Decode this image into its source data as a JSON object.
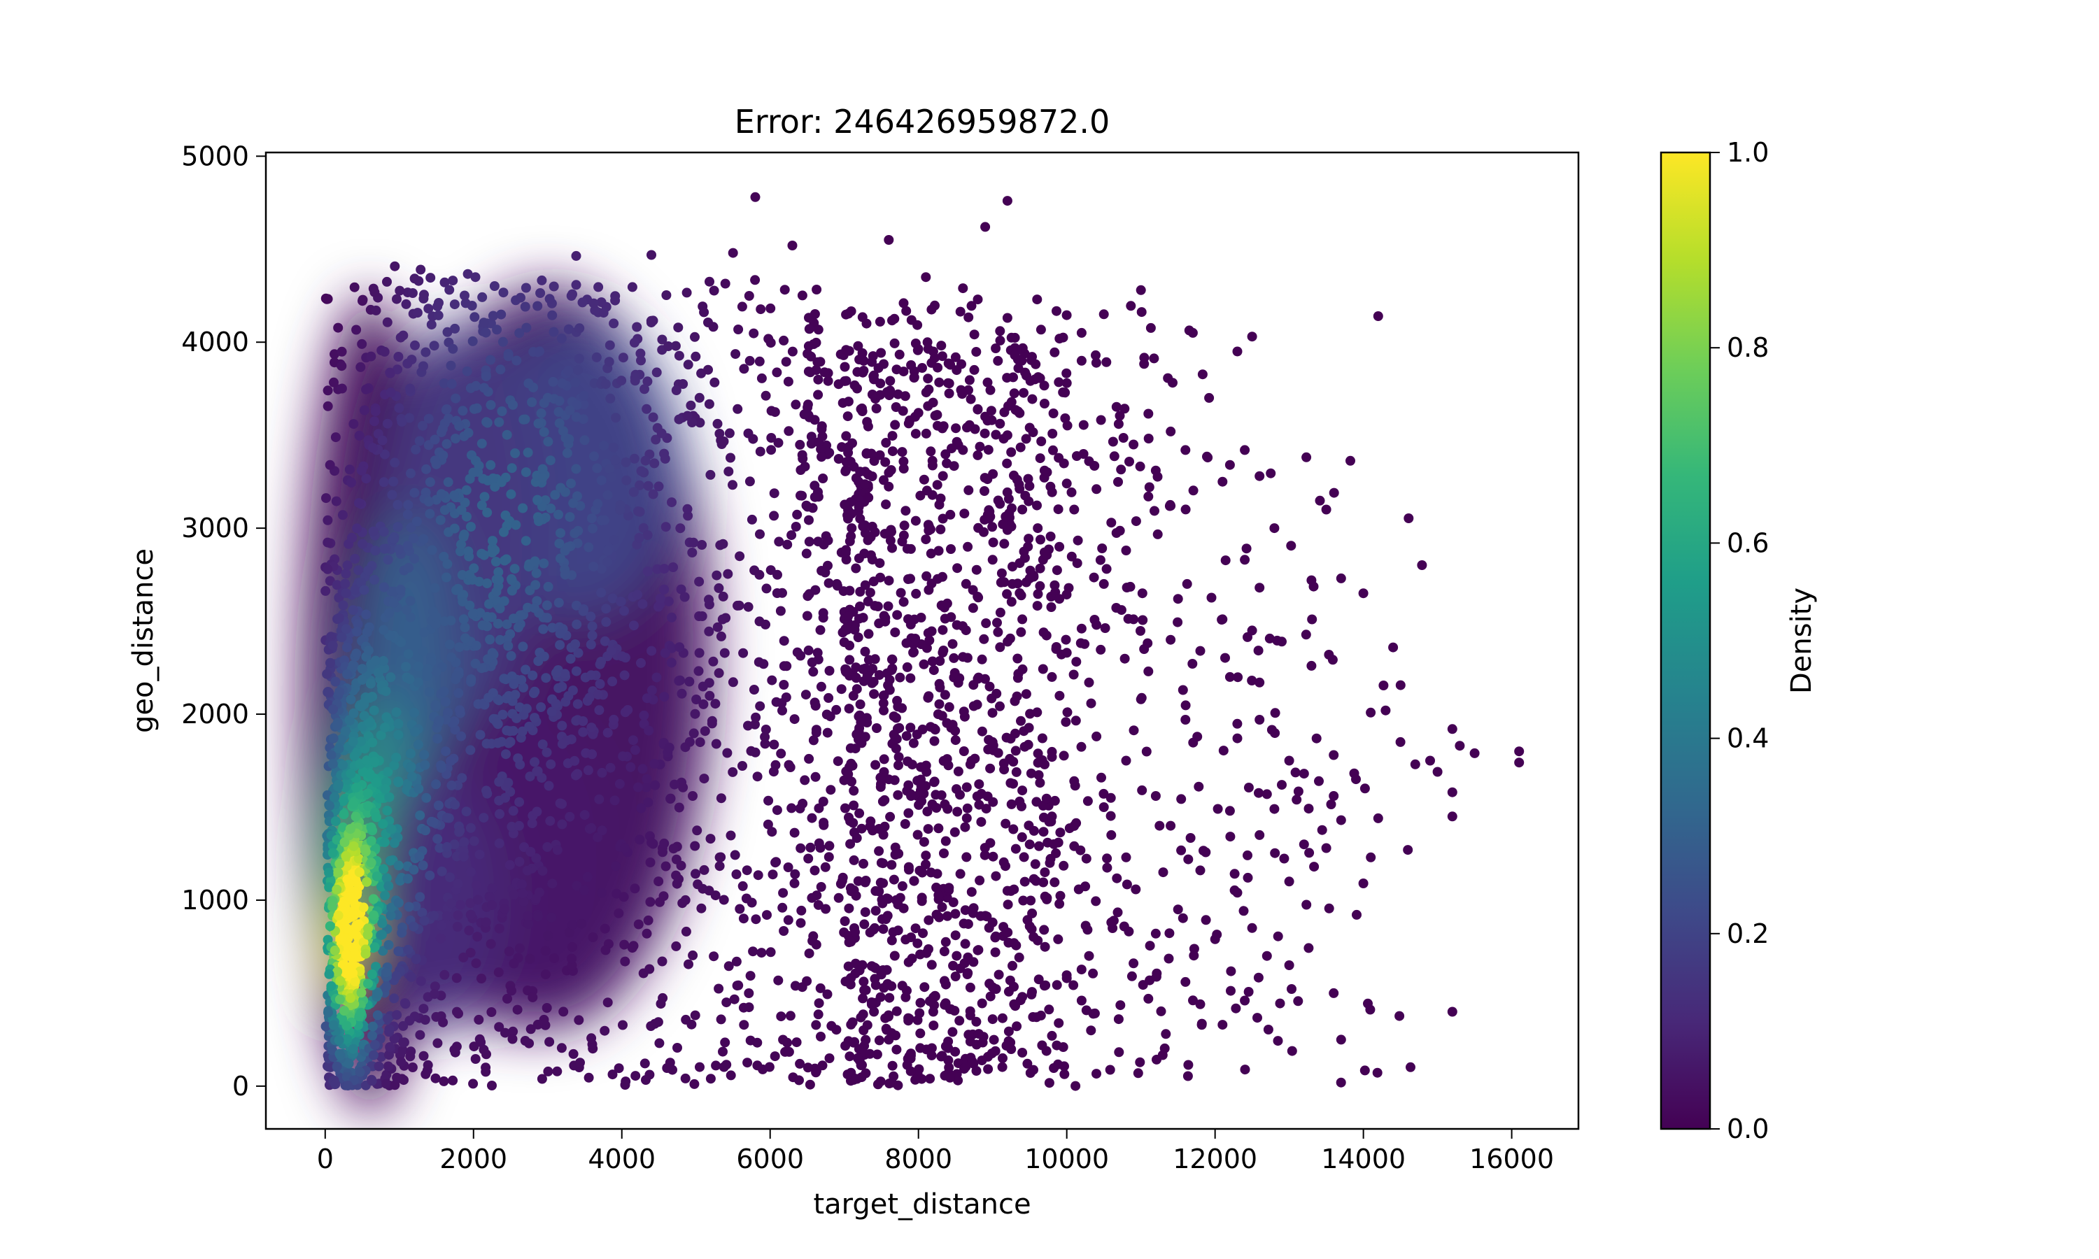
{
  "chart_data": {
    "type": "scatter",
    "title": "Error: 246426959872.0",
    "xlabel": "target_distance",
    "ylabel": "geo_distance",
    "xlim": [
      -800,
      16900
    ],
    "ylim": [
      -230,
      5020
    ],
    "x_ticks": [
      0,
      2000,
      4000,
      6000,
      8000,
      10000,
      12000,
      14000,
      16000
    ],
    "y_ticks": [
      0,
      1000,
      2000,
      3000,
      4000,
      5000
    ],
    "grid": false,
    "legend": "none",
    "colormap": "viridis",
    "colorbar": {
      "label": "Density",
      "ticks": [
        0.0,
        0.2,
        0.4,
        0.6,
        0.8,
        1.0
      ],
      "tick_labels": [
        "0.0",
        "0.2",
        "0.4",
        "0.6",
        "0.8",
        "1.0"
      ],
      "range": [
        0.0,
        1.0
      ]
    },
    "colors": [
      "#440154",
      "#482878",
      "#3e4989",
      "#31688e",
      "#26828e",
      "#1f9e89",
      "#35b779",
      "#6ece58",
      "#b5de2b",
      "#fde725"
    ],
    "outlier_points": [
      [
        5800,
        4780
      ],
      [
        9200,
        4760
      ],
      [
        8900,
        4620
      ],
      [
        7600,
        4550
      ],
      [
        6300,
        4520
      ],
      [
        5500,
        4480
      ],
      [
        14200,
        4140
      ],
      [
        12500,
        4030
      ],
      [
        11000,
        4280
      ],
      [
        10500,
        4150
      ],
      [
        12300,
        3950
      ],
      [
        11700,
        4050
      ],
      [
        13500,
        3100
      ],
      [
        12800,
        3000
      ],
      [
        13300,
        2720
      ],
      [
        14000,
        2650
      ],
      [
        13700,
        2730
      ],
      [
        12600,
        2680
      ],
      [
        14300,
        2020
      ],
      [
        14900,
        1750
      ],
      [
        15200,
        1920
      ],
      [
        15300,
        1830
      ],
      [
        16100,
        1800
      ],
      [
        16100,
        1740
      ],
      [
        15200,
        1580
      ],
      [
        15200,
        1450
      ],
      [
        14700,
        1730
      ],
      [
        14500,
        1850
      ],
      [
        13000,
        1750
      ],
      [
        13200,
        1680
      ],
      [
        13600,
        1780
      ],
      [
        13900,
        1650
      ],
      [
        13700,
        1430
      ],
      [
        13500,
        1280
      ],
      [
        13200,
        1300
      ],
      [
        13000,
        1100
      ],
      [
        12600,
        1350
      ],
      [
        12300,
        1040
      ],
      [
        12500,
        850
      ],
      [
        12700,
        700
      ],
      [
        13000,
        650
      ],
      [
        12000,
        790
      ],
      [
        11500,
        950
      ],
      [
        11200,
        820
      ],
      [
        10900,
        660
      ],
      [
        10600,
        880
      ],
      [
        10300,
        700
      ],
      [
        10000,
        580
      ],
      [
        9700,
        540
      ],
      [
        9400,
        480
      ],
      [
        9000,
        360
      ],
      [
        8700,
        380
      ],
      [
        9400,
        180
      ],
      [
        10200,
        460
      ],
      [
        10700,
        360
      ],
      [
        11100,
        470
      ],
      [
        11600,
        560
      ],
      [
        11800,
        440
      ],
      [
        12100,
        330
      ],
      [
        12400,
        460
      ],
      [
        13700,
        250
      ],
      [
        13600,
        500
      ],
      [
        15200,
        400
      ],
      [
        14100,
        1230
      ],
      [
        14000,
        1090
      ],
      [
        12800,
        1490
      ],
      [
        12200,
        1480
      ],
      [
        11800,
        1160
      ],
      [
        11300,
        1150
      ],
      [
        10800,
        1230
      ],
      [
        10500,
        1500
      ],
      [
        10100,
        1290
      ],
      [
        9800,
        1450
      ],
      [
        9500,
        1300
      ],
      [
        12500,
        2450
      ],
      [
        12100,
        2510
      ],
      [
        11800,
        2340
      ],
      [
        12200,
        2200
      ],
      [
        12600,
        2170
      ],
      [
        11400,
        2400
      ],
      [
        11100,
        2230
      ],
      [
        11000,
        2080
      ],
      [
        11600,
        1970
      ],
      [
        12300,
        1870
      ],
      [
        12600,
        1970
      ],
      [
        10300,
        2170
      ],
      [
        10000,
        2330
      ],
      [
        9800,
        2200
      ],
      [
        10400,
        2480
      ],
      [
        11500,
        2620
      ],
      [
        10800,
        2880
      ],
      [
        10600,
        3030
      ],
      [
        11100,
        3170
      ],
      [
        11400,
        3120
      ],
      [
        11200,
        3310
      ],
      [
        11600,
        3420
      ],
      [
        11900,
        3380
      ],
      [
        12200,
        3340
      ],
      [
        12400,
        3420
      ],
      [
        12100,
        3250
      ],
      [
        12600,
        3280
      ],
      [
        10900,
        3450
      ],
      [
        10700,
        3560
      ],
      [
        10300,
        3360
      ],
      [
        10000,
        3240
      ],
      [
        9700,
        3310
      ],
      [
        9400,
        3100
      ],
      [
        9200,
        2990
      ],
      [
        9000,
        2830
      ],
      [
        9500,
        3540
      ],
      [
        9700,
        3670
      ],
      [
        10000,
        3780
      ],
      [
        10200,
        3900
      ],
      [
        9100,
        4060
      ],
      [
        9600,
        4230
      ],
      [
        10200,
        4050
      ],
      [
        9300,
        3930
      ],
      [
        8800,
        4230
      ],
      [
        8600,
        4290
      ],
      [
        8400,
        3780
      ],
      [
        8900,
        3600
      ],
      [
        9200,
        3500
      ],
      [
        10500,
        2700
      ],
      [
        10900,
        2510
      ],
      [
        9900,
        2620
      ],
      [
        9400,
        2510
      ],
      [
        9100,
        2360
      ],
      [
        8800,
        2190
      ],
      [
        9300,
        2070
      ],
      [
        9600,
        2010
      ],
      [
        9000,
        1850
      ],
      [
        8700,
        1730
      ],
      [
        9400,
        1590
      ],
      [
        9800,
        1770
      ],
      [
        10100,
        1640
      ],
      [
        10400,
        1880
      ],
      [
        10800,
        1750
      ],
      [
        11200,
        1560
      ],
      [
        10600,
        1350
      ],
      [
        11400,
        1400
      ],
      [
        9200,
        1050
      ],
      [
        9000,
        880
      ],
      [
        8800,
        730
      ],
      [
        8500,
        590
      ],
      [
        8200,
        400
      ],
      [
        8400,
        240
      ],
      [
        8700,
        530
      ],
      [
        9500,
        860
      ],
      [
        9900,
        980
      ],
      [
        8100,
        2940
      ],
      [
        8300,
        3160
      ],
      [
        8600,
        3420
      ],
      [
        8000,
        3620
      ],
      [
        8200,
        3950
      ],
      [
        7800,
        4210
      ],
      [
        8100,
        4350
      ],
      [
        7700,
        1980
      ],
      [
        7900,
        1560
      ],
      [
        8100,
        1240
      ],
      [
        7700,
        1000
      ],
      [
        7900,
        800
      ],
      [
        7500,
        600
      ],
      [
        7400,
        400
      ],
      [
        7600,
        250
      ],
      [
        7200,
        200
      ],
      [
        6800,
        150
      ],
      [
        6400,
        120
      ],
      [
        5900,
        90
      ],
      [
        5200,
        40
      ],
      [
        6900,
        2700
      ],
      [
        7100,
        3000
      ],
      [
        7300,
        3400
      ],
      [
        7400,
        3800
      ],
      [
        7300,
        4100
      ],
      [
        13600,
        1560
      ],
      [
        13400,
        1640
      ],
      [
        13100,
        1540
      ],
      [
        12900,
        1620
      ],
      [
        12700,
        1570
      ],
      [
        14200,
        1440
      ],
      [
        14600,
        1270
      ],
      [
        15000,
        1690
      ],
      [
        15500,
        1790
      ],
      [
        12400,
        2830
      ],
      [
        12900,
        2390
      ],
      [
        13300,
        2260
      ],
      [
        9900,
        2900
      ],
      [
        10100,
        3100
      ],
      [
        10400,
        3210
      ],
      [
        9700,
        2870
      ],
      [
        9500,
        2730
      ],
      [
        10200,
        2460
      ]
    ]
  }
}
